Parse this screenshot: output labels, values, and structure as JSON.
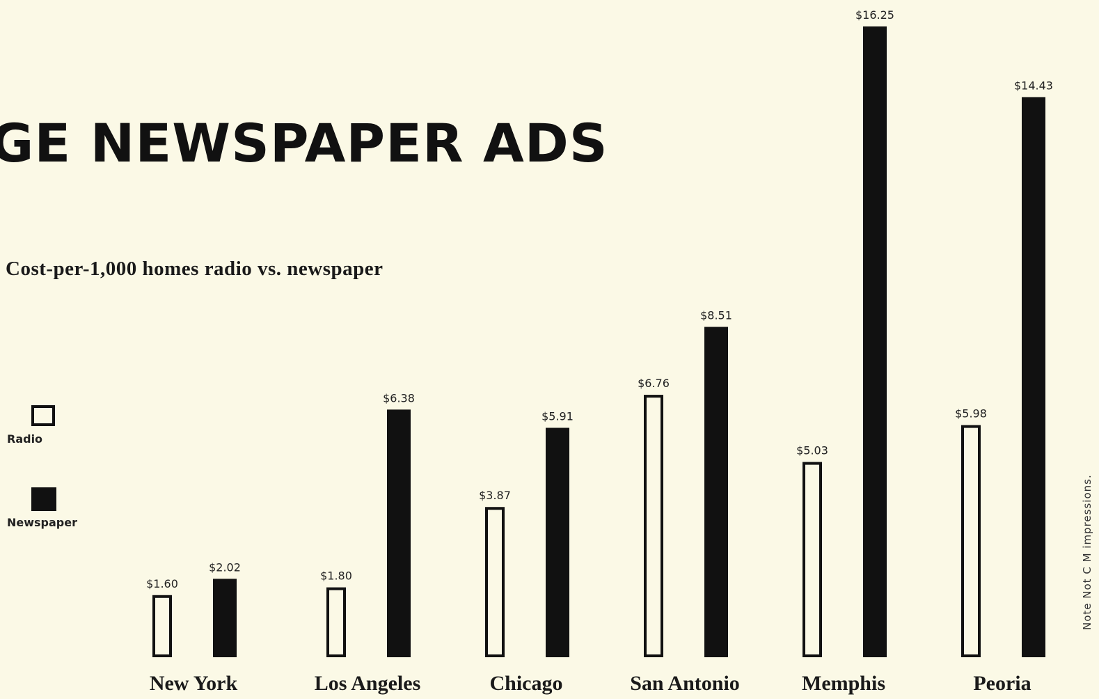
{
  "header": {
    "title": "GE NEWSPAPER ADS",
    "subtitle": "Cost-per-1,000 homes radio vs. newspaper"
  },
  "legend": {
    "radio_label": "Radio",
    "newspaper_label": "Newspaper"
  },
  "note": "Note  Not  C  M  impressions.",
  "colors": {
    "background": "#fbf9e6",
    "newspaper": "#111111",
    "radio_fill": "#fbf9e6",
    "radio_stroke": "#111111"
  },
  "chart_data": {
    "type": "bar",
    "title": "GE NEWSPAPER ADS",
    "subtitle": "Cost-per-1,000 homes radio vs. newspaper",
    "categories": [
      "New York",
      "Los Angeles",
      "Chicago",
      "San Antonio",
      "Memphis",
      "Peoria"
    ],
    "series": [
      {
        "name": "Radio",
        "values": [
          1.6,
          1.8,
          3.87,
          6.76,
          5.03,
          5.98
        ],
        "labels": [
          "$1.60",
          "$1.80",
          "$3.87",
          "$6.76",
          "$5.03",
          "$5.98"
        ]
      },
      {
        "name": "Newspaper",
        "values": [
          2.02,
          6.38,
          5.91,
          8.51,
          16.25,
          14.43
        ],
        "labels": [
          "$2.02",
          "$6.38",
          "$5.91",
          "$8.51",
          "$16.25",
          "$14.43"
        ]
      }
    ],
    "ylim": [
      0,
      16.25
    ],
    "grid": false,
    "legend_position": "left"
  }
}
